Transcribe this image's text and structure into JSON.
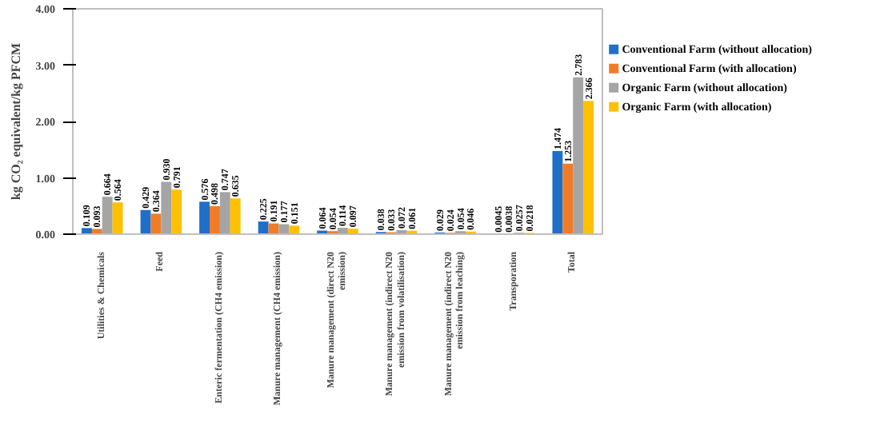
{
  "chart_data": {
    "type": "bar",
    "ylabel": "kg CO₂ equivalent/kg PFCM",
    "categories": [
      "Utilities & Chemicals",
      "Feed",
      "Enteric fermentation (CH4 emission)",
      "Manure management (CH4 emission)",
      "Manure management (direct N20 emission)",
      "Manure management (indirect N20 emission from volatilisation)",
      "Manure management (indirect N20 emission from leaching)",
      "Transporation",
      "Total"
    ],
    "series": [
      {
        "name": "Conventional  Farm (without allocation)",
        "color": "#1f6fc8",
        "values": [
          0.109,
          0.429,
          0.576,
          0.225,
          0.064,
          0.038,
          0.029,
          0.0045,
          1.474
        ],
        "value_labels": [
          "0.109",
          "0.429",
          "0.576",
          "0.225",
          "0.064",
          "0.038",
          "0.029",
          "0.0045",
          "1.474"
        ]
      },
      {
        "name": "Conventional  Farm (with allocation)",
        "color": "#f07c28",
        "values": [
          0.093,
          0.364,
          0.498,
          0.191,
          0.054,
          0.033,
          0.024,
          0.0038,
          1.253
        ],
        "value_labels": [
          "0.093",
          "0.364",
          "0.498",
          "0.191",
          "0.054",
          "0.033",
          "0.024",
          "0.0038",
          "1.253"
        ]
      },
      {
        "name": "Organic Farm (without allocation)",
        "color": "#a5a5a5",
        "values": [
          0.664,
          0.93,
          0.747,
          0.177,
          0.114,
          0.072,
          0.054,
          0.0257,
          2.783
        ],
        "value_labels": [
          "0.664",
          "0.930",
          "0.747",
          "0.177",
          "0.114",
          "0.072",
          "0.054",
          "0.0257",
          "2.783"
        ]
      },
      {
        "name": "Organic Farm (with allocation)",
        "color": "#ffc000",
        "values": [
          0.564,
          0.791,
          0.635,
          0.151,
          0.097,
          0.061,
          0.046,
          0.0218,
          2.366
        ],
        "value_labels": [
          "0.564",
          "0.791",
          "0.635",
          "0.151",
          "0.097",
          "0.061",
          "0.046",
          "0.0218",
          "2.366"
        ]
      }
    ],
    "ylim": [
      0,
      4
    ],
    "yticks": [
      {
        "value": 0,
        "label": "0.00"
      },
      {
        "value": 1,
        "label": "1.00"
      },
      {
        "value": 2,
        "label": "2.00"
      },
      {
        "value": 3,
        "label": "3.00"
      },
      {
        "value": 4,
        "label": "4.00"
      }
    ],
    "grid": false,
    "legend": "right"
  }
}
